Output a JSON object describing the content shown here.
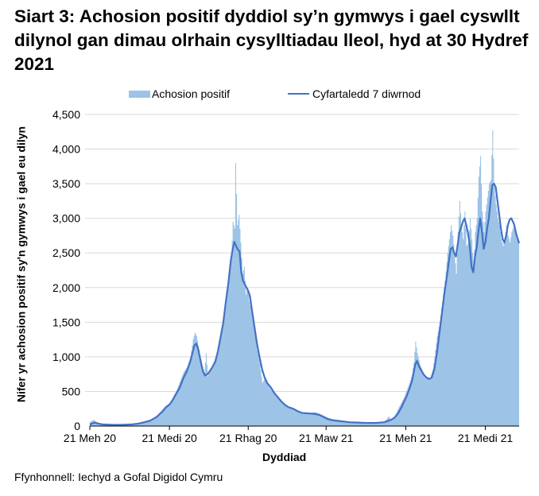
{
  "title": "Siart 3: Achosion positif dyddiol sy’n gymwys i gael cyswllt dilynol gan dimau olrhain cysylltiadau lleol, hyd at 30 Hydref 2021",
  "legend": {
    "bars_label": "Achosion positif",
    "line_label": "Cyfartaledd 7 diwrnod"
  },
  "source": "Ffynhonnell: Iechyd a Gofal Digidol Cymru",
  "colors": {
    "bars": "#9dc3e6",
    "line": "#4472c4",
    "grid": "#d9d9d9",
    "axis": "#000000"
  },
  "chart_data": {
    "type": "bar+line",
    "title": "Siart 3: Achosion positif dyddiol sy’n gymwys i gael cyswllt dilynol gan dimau olrhain cysylltiadau lleol, hyd at 30 Hydref 2021",
    "xlabel": "Dyddiad",
    "ylabel": "Nifer yr achosion positif sy'n gymwys i gael eu dilyn",
    "ylim": [
      0,
      4500
    ],
    "yticks": [
      0,
      500,
      1000,
      1500,
      2000,
      2500,
      3000,
      3500,
      4000,
      4500
    ],
    "ytick_labels": [
      "0",
      "500",
      "1,000",
      "1,500",
      "2,000",
      "2,500",
      "3,000",
      "3,500",
      "4,000",
      "4,500"
    ],
    "xlim_days": [
      0,
      496
    ],
    "x_unit": "days since 21 Jun 2020",
    "xticks": [
      {
        "day": 0,
        "label": "21 Meh 20"
      },
      {
        "day": 92,
        "label": "21 Medi 20"
      },
      {
        "day": 183,
        "label": "21 Rhag 20"
      },
      {
        "day": 273,
        "label": "21 Maw 21"
      },
      {
        "day": 365,
        "label": "21 Meh 21"
      },
      {
        "day": 457,
        "label": "21 Medi 21"
      }
    ],
    "grid": true,
    "legend_position": "top",
    "series": [
      {
        "name": "Achosion positif",
        "type": "bar",
        "points": [
          [
            0,
            60
          ],
          [
            4,
            90
          ],
          [
            7,
            60
          ],
          [
            10,
            40
          ],
          [
            14,
            30
          ],
          [
            21,
            25
          ],
          [
            28,
            20
          ],
          [
            35,
            20
          ],
          [
            42,
            25
          ],
          [
            49,
            30
          ],
          [
            56,
            40
          ],
          [
            63,
            60
          ],
          [
            70,
            90
          ],
          [
            77,
            150
          ],
          [
            84,
            250
          ],
          [
            88,
            300
          ],
          [
            92,
            330
          ],
          [
            96,
            430
          ],
          [
            100,
            520
          ],
          [
            104,
            650
          ],
          [
            108,
            780
          ],
          [
            112,
            850
          ],
          [
            116,
            1000
          ],
          [
            119,
            1250
          ],
          [
            121,
            1350
          ],
          [
            123,
            1300
          ],
          [
            126,
            1100
          ],
          [
            129,
            900
          ],
          [
            132,
            780
          ],
          [
            134,
            1050
          ],
          [
            136,
            720
          ],
          [
            139,
            820
          ],
          [
            142,
            900
          ],
          [
            145,
            1000
          ],
          [
            148,
            1100
          ],
          [
            151,
            1300
          ],
          [
            154,
            1500
          ],
          [
            157,
            1750
          ],
          [
            160,
            2100
          ],
          [
            163,
            2400
          ],
          [
            165,
            2950
          ],
          [
            167,
            2850
          ],
          [
            168,
            3800
          ],
          [
            170,
            2900
          ],
          [
            172,
            3050
          ],
          [
            174,
            2650
          ],
          [
            176,
            2200
          ],
          [
            178,
            2300
          ],
          [
            180,
            1900
          ],
          [
            182,
            2000
          ],
          [
            184,
            1800
          ],
          [
            187,
            1600
          ],
          [
            190,
            1400
          ],
          [
            193,
            1100
          ],
          [
            196,
            900
          ],
          [
            199,
            620
          ],
          [
            202,
            700
          ],
          [
            205,
            600
          ],
          [
            209,
            520
          ],
          [
            213,
            480
          ],
          [
            217,
            400
          ],
          [
            221,
            350
          ],
          [
            226,
            300
          ],
          [
            230,
            270
          ],
          [
            235,
            250
          ],
          [
            240,
            210
          ],
          [
            245,
            200
          ],
          [
            250,
            190
          ],
          [
            255,
            195
          ],
          [
            260,
            200
          ],
          [
            265,
            180
          ],
          [
            270,
            150
          ],
          [
            275,
            120
          ],
          [
            280,
            100
          ],
          [
            290,
            80
          ],
          [
            300,
            60
          ],
          [
            310,
            55
          ],
          [
            320,
            50
          ],
          [
            330,
            50
          ],
          [
            340,
            60
          ],
          [
            345,
            140
          ],
          [
            348,
            80
          ],
          [
            352,
            150
          ],
          [
            356,
            250
          ],
          [
            360,
            350
          ],
          [
            363,
            420
          ],
          [
            366,
            520
          ],
          [
            369,
            620
          ],
          [
            372,
            750
          ],
          [
            374,
            920
          ],
          [
            376,
            1220
          ],
          [
            378,
            1050
          ],
          [
            381,
            900
          ],
          [
            384,
            800
          ],
          [
            387,
            720
          ],
          [
            390,
            680
          ],
          [
            393,
            700
          ],
          [
            396,
            820
          ],
          [
            398,
            1000
          ],
          [
            401,
            1300
          ],
          [
            404,
            1500
          ],
          [
            407,
            1800
          ],
          [
            410,
            2100
          ],
          [
            413,
            2500
          ],
          [
            415,
            2700
          ],
          [
            417,
            2900
          ],
          [
            419,
            2750
          ],
          [
            421,
            2500
          ],
          [
            423,
            2200
          ],
          [
            425,
            2800
          ],
          [
            427,
            3250
          ],
          [
            429,
            2900
          ],
          [
            431,
            2700
          ],
          [
            433,
            3100
          ],
          [
            435,
            2600
          ],
          [
            437,
            2650
          ],
          [
            439,
            3000
          ],
          [
            441,
            2700
          ],
          [
            443,
            2300
          ],
          [
            445,
            2800
          ],
          [
            447,
            3000
          ],
          [
            449,
            3600
          ],
          [
            451,
            3900
          ],
          [
            453,
            3100
          ],
          [
            455,
            2800
          ],
          [
            457,
            3100
          ],
          [
            459,
            3300
          ],
          [
            461,
            3500
          ],
          [
            463,
            3550
          ],
          [
            465,
            4270
          ],
          [
            467,
            3450
          ],
          [
            469,
            3200
          ],
          [
            471,
            3000
          ],
          [
            473,
            2900
          ],
          [
            475,
            2700
          ],
          [
            477,
            2600
          ],
          [
            479,
            2700
          ],
          [
            481,
            2900
          ],
          [
            483,
            2750
          ],
          [
            485,
            2650
          ],
          [
            487,
            2800
          ],
          [
            490,
            2900
          ],
          [
            493,
            2700
          ],
          [
            496,
            2650
          ]
        ]
      },
      {
        "name": "Cyfartaledd 7 diwrnod",
        "type": "line",
        "points": [
          [
            0,
            20
          ],
          [
            3,
            40
          ],
          [
            6,
            50
          ],
          [
            10,
            35
          ],
          [
            14,
            25
          ],
          [
            21,
            20
          ],
          [
            28,
            18
          ],
          [
            35,
            18
          ],
          [
            42,
            20
          ],
          [
            49,
            25
          ],
          [
            56,
            35
          ],
          [
            63,
            55
          ],
          [
            70,
            80
          ],
          [
            77,
            130
          ],
          [
            84,
            210
          ],
          [
            88,
            270
          ],
          [
            92,
            310
          ],
          [
            96,
            380
          ],
          [
            100,
            470
          ],
          [
            104,
            560
          ],
          [
            108,
            690
          ],
          [
            112,
            790
          ],
          [
            116,
            930
          ],
          [
            119,
            1080
          ],
          [
            121,
            1170
          ],
          [
            123,
            1190
          ],
          [
            125,
            1120
          ],
          [
            127,
            1000
          ],
          [
            129,
            880
          ],
          [
            131,
            780
          ],
          [
            133,
            730
          ],
          [
            136,
            750
          ],
          [
            139,
            800
          ],
          [
            142,
            860
          ],
          [
            145,
            930
          ],
          [
            148,
            1080
          ],
          [
            151,
            1280
          ],
          [
            154,
            1480
          ],
          [
            157,
            1780
          ],
          [
            160,
            2060
          ],
          [
            163,
            2400
          ],
          [
            165,
            2550
          ],
          [
            167,
            2660
          ],
          [
            169,
            2600
          ],
          [
            171,
            2550
          ],
          [
            173,
            2520
          ],
          [
            175,
            2220
          ],
          [
            177,
            2100
          ],
          [
            179,
            2050
          ],
          [
            181,
            2000
          ],
          [
            183,
            1950
          ],
          [
            185,
            1880
          ],
          [
            187,
            1700
          ],
          [
            190,
            1450
          ],
          [
            193,
            1200
          ],
          [
            196,
            1000
          ],
          [
            199,
            820
          ],
          [
            202,
            700
          ],
          [
            205,
            620
          ],
          [
            209,
            560
          ],
          [
            213,
            480
          ],
          [
            217,
            420
          ],
          [
            221,
            360
          ],
          [
            226,
            300
          ],
          [
            230,
            270
          ],
          [
            235,
            250
          ],
          [
            240,
            215
          ],
          [
            245,
            190
          ],
          [
            250,
            185
          ],
          [
            255,
            180
          ],
          [
            260,
            175
          ],
          [
            265,
            160
          ],
          [
            270,
            130
          ],
          [
            275,
            100
          ],
          [
            280,
            85
          ],
          [
            290,
            70
          ],
          [
            300,
            55
          ],
          [
            310,
            50
          ],
          [
            320,
            45
          ],
          [
            330,
            45
          ],
          [
            340,
            55
          ],
          [
            345,
            75
          ],
          [
            348,
            90
          ],
          [
            352,
            120
          ],
          [
            356,
            180
          ],
          [
            360,
            270
          ],
          [
            363,
            350
          ],
          [
            366,
            430
          ],
          [
            369,
            530
          ],
          [
            372,
            640
          ],
          [
            374,
            760
          ],
          [
            376,
            890
          ],
          [
            378,
            940
          ],
          [
            380,
            870
          ],
          [
            383,
            800
          ],
          [
            386,
            740
          ],
          [
            389,
            700
          ],
          [
            392,
            680
          ],
          [
            395,
            700
          ],
          [
            398,
            820
          ],
          [
            401,
            1050
          ],
          [
            404,
            1350
          ],
          [
            407,
            1650
          ],
          [
            410,
            1950
          ],
          [
            413,
            2200
          ],
          [
            415,
            2400
          ],
          [
            417,
            2560
          ],
          [
            419,
            2580
          ],
          [
            421,
            2500
          ],
          [
            423,
            2450
          ],
          [
            425,
            2620
          ],
          [
            427,
            2800
          ],
          [
            429,
            2870
          ],
          [
            431,
            2950
          ],
          [
            433,
            3000
          ],
          [
            435,
            2900
          ],
          [
            437,
            2780
          ],
          [
            439,
            2600
          ],
          [
            441,
            2300
          ],
          [
            443,
            2220
          ],
          [
            445,
            2450
          ],
          [
            447,
            2580
          ],
          [
            449,
            2820
          ],
          [
            451,
            3000
          ],
          [
            453,
            2820
          ],
          [
            455,
            2560
          ],
          [
            457,
            2650
          ],
          [
            459,
            2850
          ],
          [
            461,
            3000
          ],
          [
            463,
            3250
          ],
          [
            465,
            3480
          ],
          [
            467,
            3500
          ],
          [
            469,
            3450
          ],
          [
            471,
            3250
          ],
          [
            473,
            3050
          ],
          [
            475,
            2850
          ],
          [
            477,
            2700
          ],
          [
            479,
            2650
          ],
          [
            481,
            2750
          ],
          [
            483,
            2900
          ],
          [
            485,
            2980
          ],
          [
            487,
            3000
          ],
          [
            490,
            2920
          ],
          [
            493,
            2760
          ],
          [
            496,
            2640
          ]
        ]
      }
    ]
  }
}
